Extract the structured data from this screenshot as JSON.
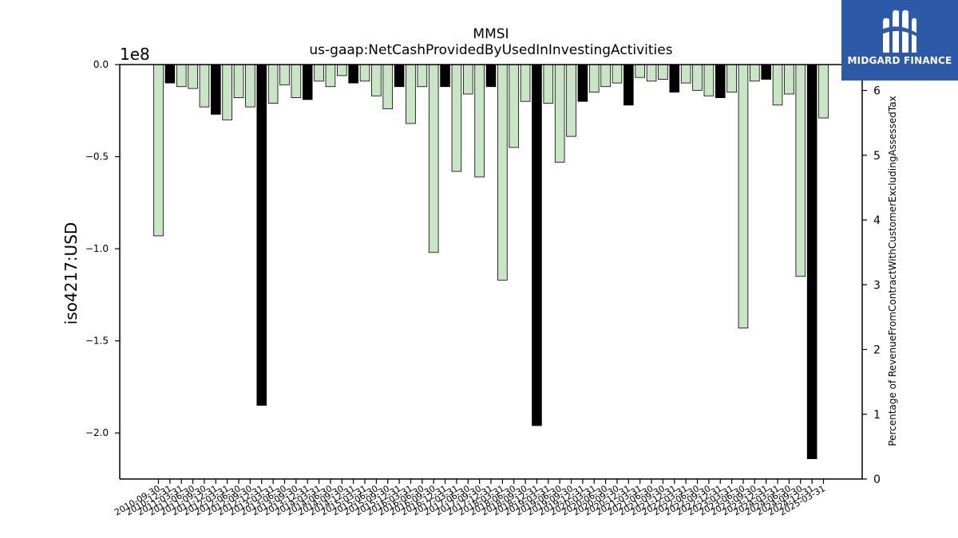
{
  "chart_data": {
    "type": "bar",
    "title": "MMSI",
    "subtitle": "us-gaap:NetCashProvidedByUsedInInvestingActivities",
    "ylabel": "iso4217:USD",
    "y2label": "Percentage of RevenueFromContractWithCustomerExcludingAssessedTax",
    "offset_text": "1e8",
    "ylim": [
      -2.25,
      0
    ],
    "y_scale_exponent": 8,
    "y_ticks": [
      0.0,
      -0.5,
      -1.0,
      -1.5,
      -2.0
    ],
    "y_tick_labels": [
      "0.0",
      "−0.5",
      "−1.0",
      "−1.5",
      "−2.0"
    ],
    "y2lim": [
      0,
      6.4
    ],
    "y2_ticks": [
      0,
      1,
      2,
      3,
      4,
      5,
      6
    ],
    "y2_tick_labels": [
      "0",
      "1",
      "2",
      "3",
      "4",
      "5",
      "6"
    ],
    "colors": {
      "quarter": "#c8e6c3",
      "annual": "#000000",
      "edge": "#000000"
    },
    "categories": [
      "2010-09-30",
      "2010-12-31",
      "2011-03-31",
      "2011-06-30",
      "2011-09-30",
      "2011-12-31",
      "2012-03-31",
      "2012-06-30",
      "2012-09-30",
      "2012-12-31",
      "2013-03-31",
      "2013-06-30",
      "2013-09-30",
      "2013-12-31",
      "2014-03-31",
      "2014-06-30",
      "2014-09-30",
      "2014-12-31",
      "2015-03-31",
      "2015-06-30",
      "2015-09-30",
      "2015-12-31",
      "2016-03-31",
      "2016-06-30",
      "2016-09-30",
      "2016-12-31",
      "2017-03-31",
      "2017-06-30",
      "2017-09-30",
      "2017-12-31",
      "2018-03-31",
      "2018-06-30",
      "2018-09-30",
      "2018-12-31",
      "2019-03-31",
      "2019-06-30",
      "2019-09-30",
      "2019-12-31",
      "2020-03-31",
      "2020-06-30",
      "2020-09-30",
      "2020-12-31",
      "2021-03-31",
      "2021-06-30",
      "2021-09-30",
      "2021-12-31",
      "2022-03-31",
      "2022-06-30",
      "2022-09-30",
      "2022-12-31",
      "2023-03-31",
      "2023-06-30",
      "2023-09-30",
      "2023-12-31",
      "2024-03-31",
      "2024-06-30",
      "2024-09-30",
      "2024-12-31",
      "2025-03-31"
    ],
    "values": [
      -0.93,
      -0.1,
      -0.12,
      -0.13,
      -0.23,
      -0.27,
      -0.3,
      -0.18,
      -0.23,
      -1.85,
      -0.21,
      -0.11,
      -0.18,
      -0.19,
      -0.09,
      -0.12,
      -0.06,
      -0.1,
      -0.09,
      -0.17,
      -0.24,
      -0.12,
      -0.32,
      -0.12,
      -1.02,
      -0.12,
      -0.58,
      -0.16,
      -0.61,
      -0.12,
      -1.17,
      -0.45,
      -0.2,
      -1.96,
      -0.21,
      -0.53,
      -0.39,
      -0.2,
      -0.15,
      -0.12,
      -0.1,
      -0.22,
      -0.07,
      -0.09,
      -0.08,
      -0.15,
      -0.1,
      -0.14,
      -0.17,
      -0.18,
      -0.15,
      -1.43,
      -0.09,
      -0.08,
      -0.22,
      -0.16,
      -1.15,
      -2.14,
      -0.29
    ],
    "annual": [
      false,
      true,
      false,
      false,
      false,
      true,
      false,
      false,
      false,
      true,
      false,
      false,
      false,
      true,
      false,
      false,
      false,
      true,
      false,
      false,
      false,
      true,
      false,
      false,
      false,
      true,
      false,
      false,
      false,
      true,
      false,
      false,
      false,
      true,
      false,
      false,
      false,
      true,
      false,
      false,
      false,
      true,
      false,
      false,
      false,
      true,
      false,
      false,
      false,
      true,
      false,
      false,
      false,
      true,
      false,
      false,
      false,
      true,
      false
    ]
  },
  "logo": {
    "text": "MIDGARD FINANCE"
  }
}
